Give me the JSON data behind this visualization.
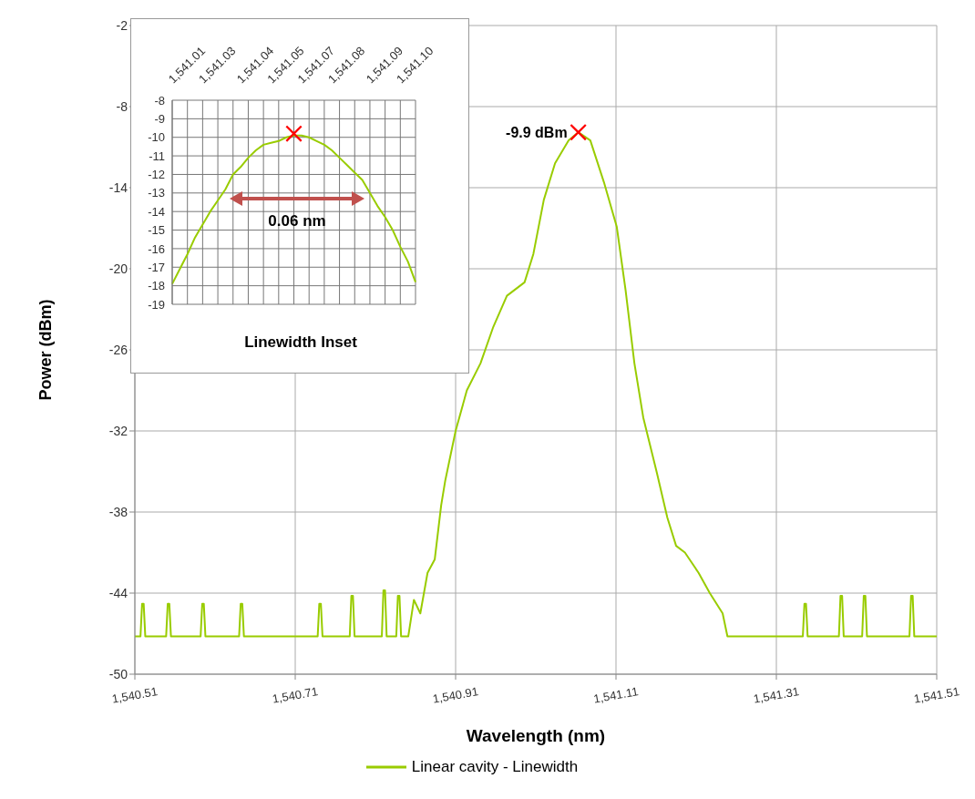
{
  "chart_data": [
    {
      "type": "line",
      "xlabel": "Wavelength (nm)",
      "ylabel": "Power (dBm)",
      "xlim": [
        1540.51,
        1541.51
      ],
      "xticks": [
        {
          "value": 1540.51,
          "label": "1,540.51"
        },
        {
          "value": 1540.71,
          "label": "1,540.71"
        },
        {
          "value": 1540.91,
          "label": "1,540.91"
        },
        {
          "value": 1541.11,
          "label": "1,541.11"
        },
        {
          "value": 1541.31,
          "label": "1,541.31"
        },
        {
          "value": 1541.51,
          "label": "1,541.51"
        }
      ],
      "ylim": [
        -50,
        -2
      ],
      "yticks": [
        -50,
        -44,
        -38,
        -32,
        -26,
        -20,
        -14,
        -8,
        -2
      ],
      "grid": true,
      "legend": "bottom",
      "marker": "none",
      "line_style": "solid",
      "series": [
        {
          "name": "Linear cavity - Linewidth",
          "color": "#99cc00",
          "x": [
            1540.51,
            1540.517,
            1540.519,
            1540.521,
            1540.523,
            1540.549,
            1540.551,
            1540.553,
            1540.555,
            1540.592,
            1540.594,
            1540.596,
            1540.598,
            1540.64,
            1540.642,
            1540.644,
            1540.646,
            1540.738,
            1540.74,
            1540.742,
            1540.744,
            1540.778,
            1540.78,
            1540.782,
            1540.784,
            1540.818,
            1540.82,
            1540.822,
            1540.824,
            1540.836,
            1540.838,
            1540.84,
            1540.842,
            1540.851,
            1540.858,
            1540.866,
            1540.875,
            1540.884,
            1540.892,
            1540.897,
            1540.91,
            1540.924,
            1540.941,
            1540.957,
            1540.974,
            1540.996,
            1541.007,
            1541.02,
            1541.034,
            1541.051,
            1541.063,
            1541.078,
            1541.095,
            1541.111,
            1541.122,
            1541.133,
            1541.144,
            1541.161,
            1541.174,
            1541.185,
            1541.196,
            1541.213,
            1541.227,
            1541.243,
            1541.249,
            1541.343,
            1541.345,
            1541.347,
            1541.349,
            1541.388,
            1541.39,
            1541.392,
            1541.394,
            1541.417,
            1541.419,
            1541.421,
            1541.423,
            1541.476,
            1541.478,
            1541.48,
            1541.482,
            1541.51
          ],
          "values": [
            -47.2,
            -47.2,
            -44.8,
            -44.8,
            -47.2,
            -47.2,
            -44.8,
            -44.8,
            -47.2,
            -47.2,
            -44.8,
            -44.8,
            -47.2,
            -47.2,
            -44.8,
            -44.8,
            -47.2,
            -47.2,
            -44.8,
            -44.8,
            -47.2,
            -47.2,
            -44.2,
            -44.2,
            -47.2,
            -47.2,
            -43.8,
            -43.8,
            -47.2,
            -47.2,
            -44.2,
            -44.2,
            -47.2,
            -47.2,
            -44.5,
            -45.5,
            -42.5,
            -41.5,
            -37.5,
            -35.7,
            -32.0,
            -29.0,
            -27.0,
            -24.3,
            -22.0,
            -21.0,
            -18.9,
            -14.9,
            -12.2,
            -10.5,
            -9.9,
            -10.5,
            -13.6,
            -16.9,
            -21.6,
            -27.0,
            -31.0,
            -35.1,
            -38.4,
            -40.5,
            -41.0,
            -42.5,
            -44.0,
            -45.5,
            -47.2,
            -47.2,
            -44.8,
            -44.8,
            -47.2,
            -47.2,
            -44.2,
            -44.2,
            -47.2,
            -47.2,
            -44.2,
            -44.2,
            -47.2,
            -47.2,
            -44.2,
            -44.2,
            -47.2,
            -47.2
          ]
        },
        {
          "type": "scatter",
          "color": "#ff0000",
          "marker": "cross",
          "x": [
            1541.063
          ],
          "values": [
            -9.9
          ]
        }
      ],
      "annotations": [
        {
          "text": "-9.9 dBm",
          "x": 1541.063,
          "y": -9.9
        }
      ]
    },
    {
      "type": "line",
      "title": "Linewidth Inset",
      "categories": [
        null,
        null,
        "1,541.01",
        null,
        null,
        null,
        "1,541.03",
        null,
        null,
        null,
        null,
        "1,541.04",
        null,
        null,
        null,
        "1,541.05",
        null,
        null,
        null,
        "1,541.07",
        null,
        null,
        null,
        "1,541.08",
        null,
        null,
        null,
        null,
        "1,541.09",
        null,
        null,
        null,
        "1,541.10"
      ],
      "ylim": [
        -19,
        -8
      ],
      "yticks": [
        -19,
        -18,
        -17,
        -16,
        -15,
        -14,
        -13,
        -12,
        -11,
        -10,
        -9,
        -8
      ],
      "grid": true,
      "marker": "none",
      "line_style": "solid",
      "series": [
        {
          "color": "#99cc00",
          "values": [
            -17.9,
            -17.1,
            -16.3,
            -15.4,
            -14.7,
            -14.0,
            -13.4,
            -12.8,
            -12.0,
            -11.6,
            -11.1,
            -10.7,
            -10.4,
            -10.3,
            -10.2,
            -10.0,
            -9.9,
            -9.9,
            -10.0,
            -10.2,
            -10.4,
            -10.7,
            -11.1,
            -11.5,
            -11.9,
            -12.3,
            -13.0,
            -13.7,
            -14.3,
            -15.0,
            -15.9,
            -16.7,
            -17.8
          ]
        },
        {
          "type": "scatter",
          "color": "#ff0000",
          "marker": "cross",
          "values": [
            null,
            null,
            null,
            null,
            null,
            null,
            null,
            null,
            null,
            null,
            null,
            null,
            null,
            null,
            null,
            null,
            -9.8,
            null,
            null,
            null,
            null,
            null,
            null,
            null,
            null,
            null,
            null,
            null,
            null,
            null,
            null,
            null,
            null
          ]
        }
      ],
      "annotations": [
        "0.06 nm"
      ]
    }
  ]
}
